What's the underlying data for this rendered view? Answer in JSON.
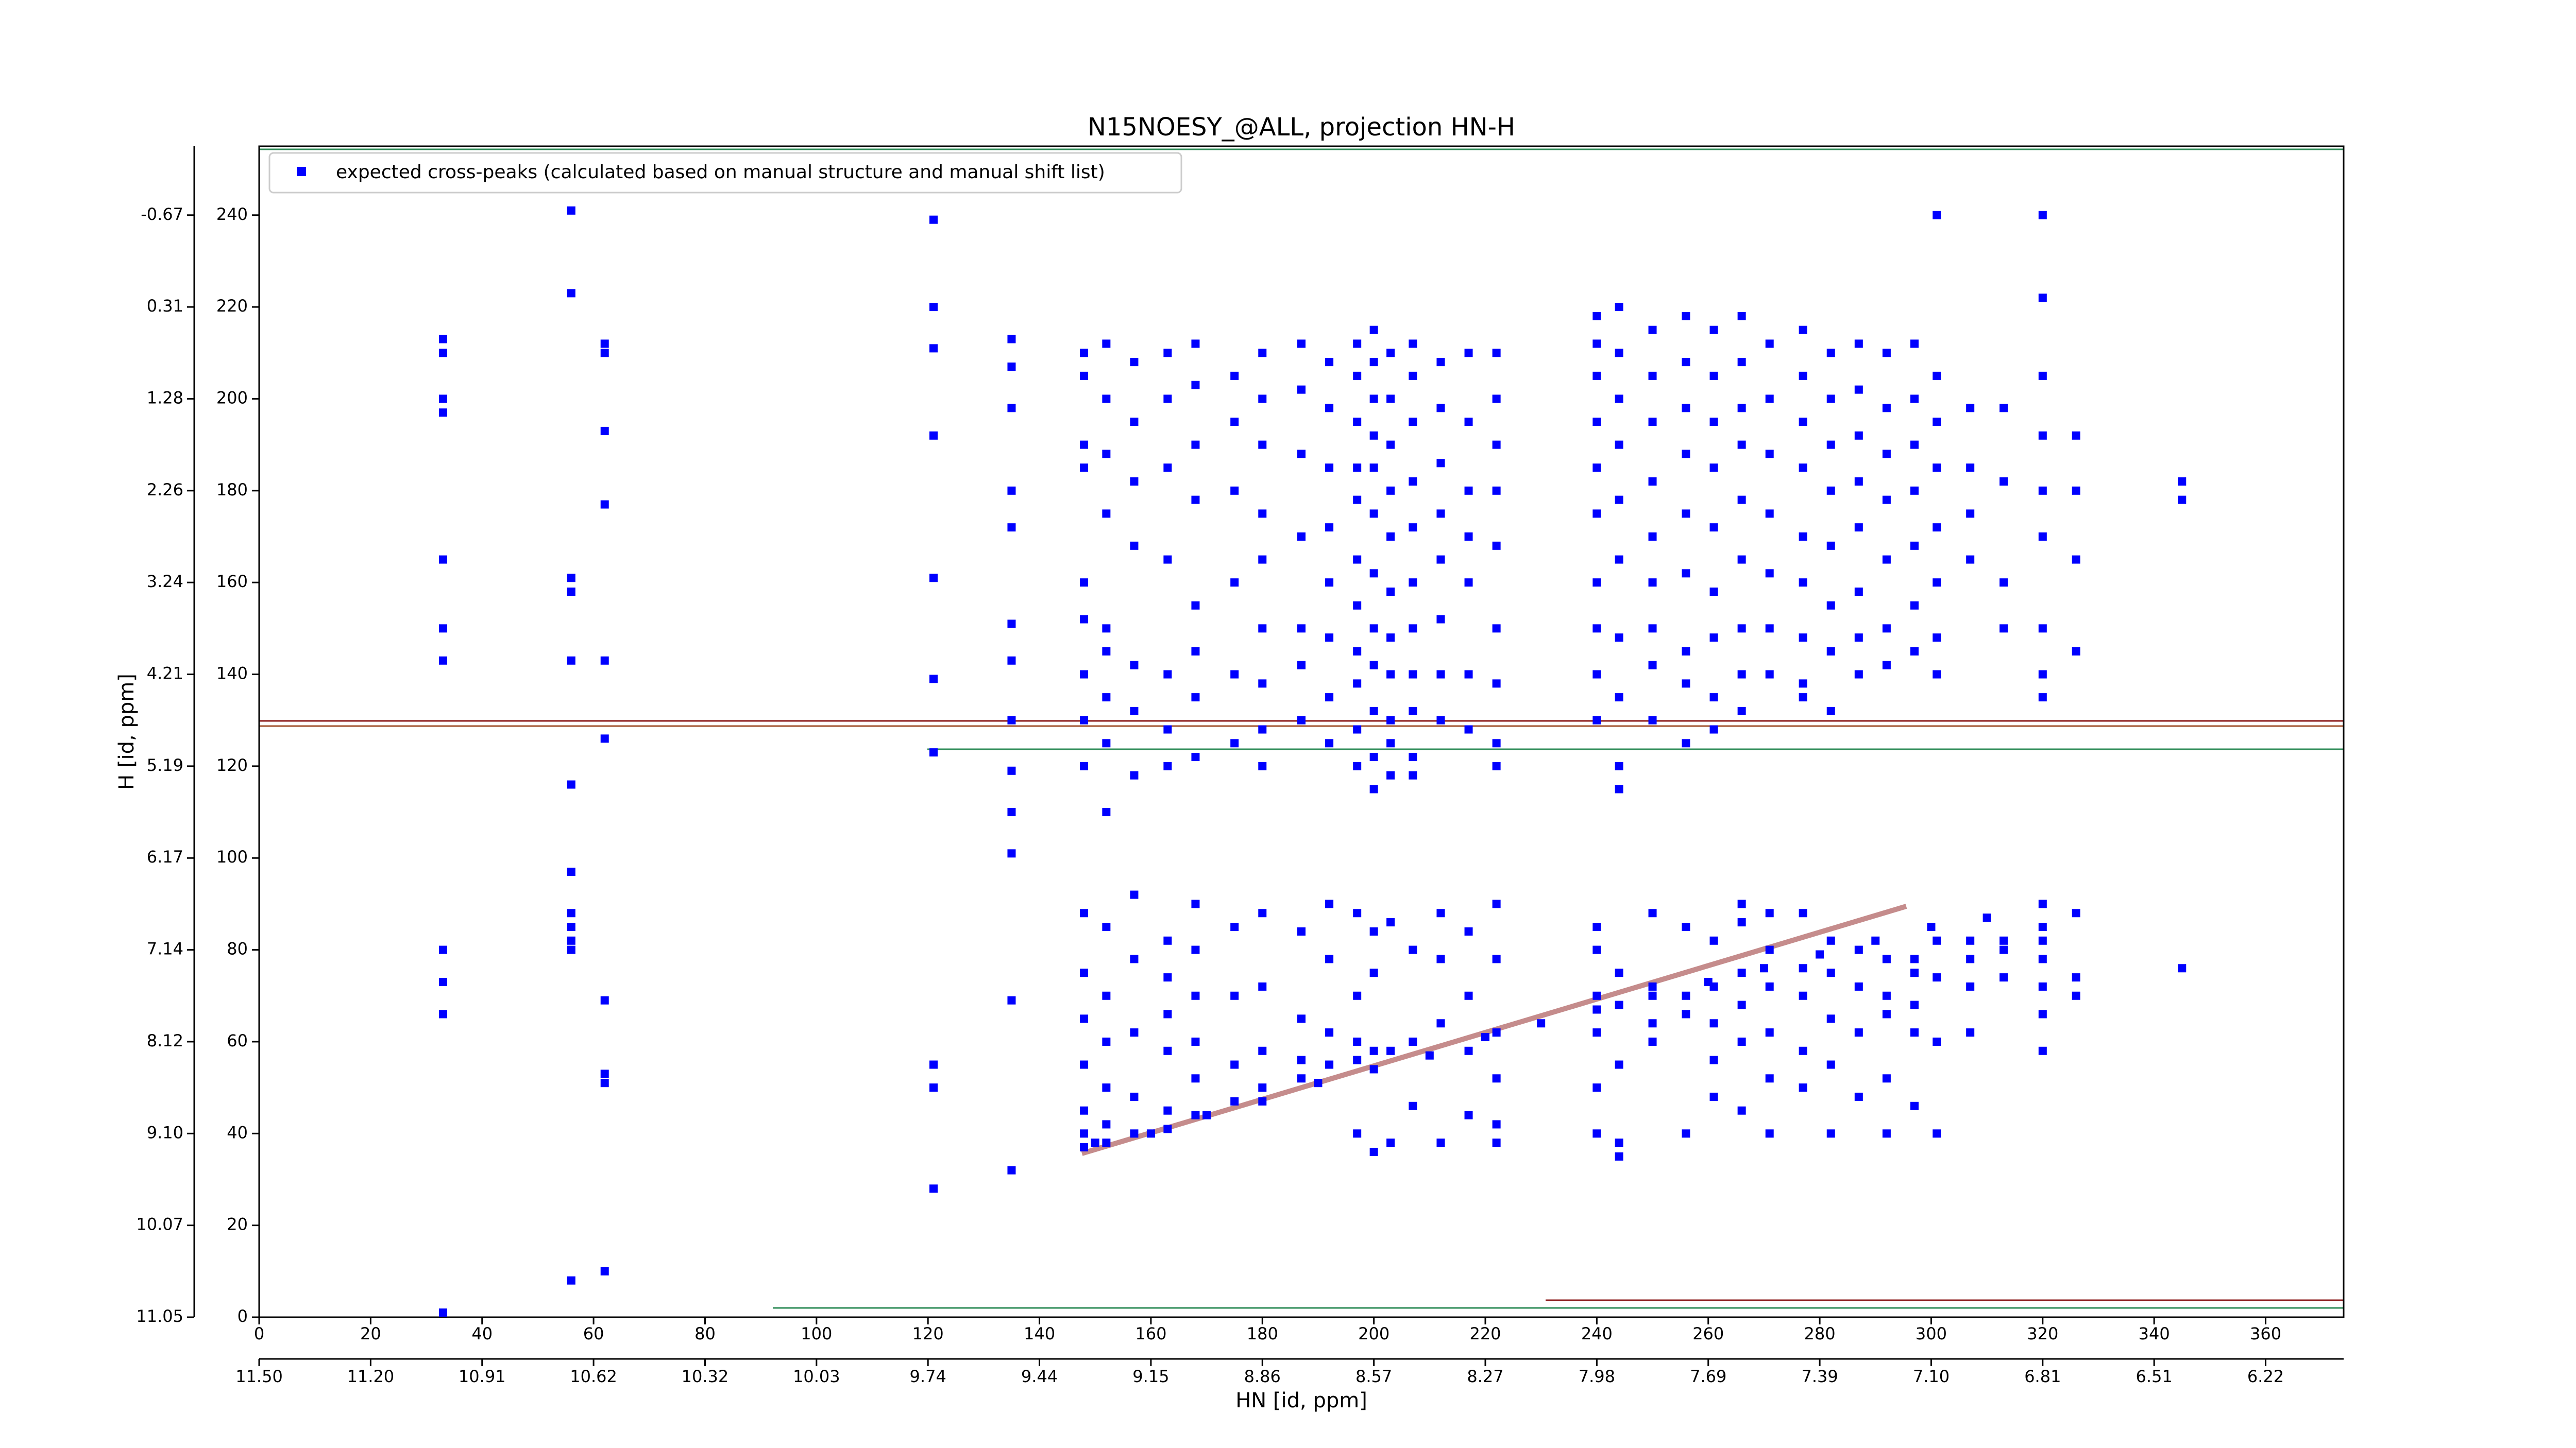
{
  "chart_data": {
    "type": "scatter",
    "title": "N15NOESY_@ALL, projection HN-H",
    "xlabel": "HN [id, ppm]",
    "ylabel": "H [id, ppm]",
    "xlim": [
      0,
      374
    ],
    "ylim": [
      0,
      255
    ],
    "xticks": [
      0,
      20,
      40,
      60,
      80,
      100,
      120,
      140,
      160,
      180,
      200,
      220,
      240,
      260,
      280,
      300,
      320,
      340,
      360
    ],
    "yticks": [
      0,
      20,
      40,
      60,
      80,
      100,
      120,
      140,
      160,
      180,
      200,
      220,
      240
    ],
    "x_ppm_ticks": [
      {
        "value": 0,
        "label": "11.50"
      },
      {
        "value": 20,
        "label": "11.20"
      },
      {
        "value": 40,
        "label": "10.91"
      },
      {
        "value": 60,
        "label": "10.62"
      },
      {
        "value": 80,
        "label": "10.32"
      },
      {
        "value": 100,
        "label": "10.03"
      },
      {
        "value": 120,
        "label": "9.74"
      },
      {
        "value": 140,
        "label": "9.44"
      },
      {
        "value": 160,
        "label": "9.15"
      },
      {
        "value": 180,
        "label": "8.86"
      },
      {
        "value": 200,
        "label": "8.57"
      },
      {
        "value": 220,
        "label": "8.27"
      },
      {
        "value": 240,
        "label": "7.98"
      },
      {
        "value": 260,
        "label": "7.69"
      },
      {
        "value": 280,
        "label": "7.39"
      },
      {
        "value": 300,
        "label": "7.10"
      },
      {
        "value": 320,
        "label": "6.81"
      },
      {
        "value": 340,
        "label": "6.51"
      },
      {
        "value": 360,
        "label": "6.22"
      }
    ],
    "y_ppm_ticks": [
      {
        "value": 0,
        "label": "11.05"
      },
      {
        "value": 20,
        "label": "10.07"
      },
      {
        "value": 40,
        "label": "9.10"
      },
      {
        "value": 60,
        "label": "8.12"
      },
      {
        "value": 80,
        "label": "7.14"
      },
      {
        "value": 100,
        "label": "6.17"
      },
      {
        "value": 120,
        "label": "5.19"
      },
      {
        "value": 140,
        "label": "4.21"
      },
      {
        "value": 160,
        "label": "3.24"
      },
      {
        "value": 180,
        "label": "2.26"
      },
      {
        "value": 200,
        "label": "1.28"
      },
      {
        "value": 220,
        "label": "0.31"
      },
      {
        "value": 240,
        "label": "-0.67"
      }
    ],
    "legend": "upper left",
    "series": [
      {
        "name": "expected cross-peaks (calculated based on manual structure and manual shift list)",
        "color": "#0000ff",
        "x": [
          33,
          33,
          33,
          33,
          33,
          33,
          33,
          33,
          33,
          33,
          33,
          56,
          56,
          56,
          56,
          56,
          56,
          56,
          56,
          56,
          56,
          56,
          56,
          62,
          62,
          62,
          62,
          62,
          62,
          62,
          62,
          62,
          62,
          121,
          121,
          121,
          121,
          121,
          121,
          121,
          121,
          121,
          121,
          135,
          135,
          135,
          135,
          135,
          135,
          135,
          135,
          135,
          135,
          135,
          135,
          135,
          148,
          148,
          148,
          148,
          148,
          148,
          148,
          148,
          148,
          148,
          148,
          148,
          148,
          148,
          148,
          148,
          152,
          152,
          152,
          152,
          152,
          152,
          152,
          152,
          152,
          152,
          152,
          152,
          152,
          152,
          152,
          157,
          157,
          157,
          157,
          157,
          157,
          157,
          157,
          157,
          157,
          157,
          157,
          163,
          163,
          163,
          163,
          163,
          163,
          163,
          163,
          163,
          163,
          163,
          163,
          163,
          168,
          168,
          168,
          168,
          168,
          168,
          168,
          168,
          168,
          168,
          168,
          168,
          168,
          168,
          175,
          175,
          175,
          175,
          175,
          175,
          175,
          175,
          175,
          175,
          180,
          180,
          180,
          180,
          180,
          180,
          180,
          180,
          180,
          180,
          180,
          180,
          180,
          187,
          187,
          187,
          187,
          187,
          187,
          187,
          187,
          187,
          187,
          187,
          192,
          192,
          192,
          192,
          192,
          192,
          192,
          192,
          192,
          192,
          192,
          192,
          197,
          197,
          197,
          197,
          197,
          197,
          197,
          197,
          197,
          197,
          197,
          197,
          197,
          197,
          197,
          197,
          200,
          200,
          200,
          200,
          200,
          200,
          200,
          200,
          200,
          200,
          200,
          200,
          200,
          200,
          200,
          200,
          203,
          203,
          203,
          203,
          203,
          203,
          203,
          203,
          203,
          203,
          203,
          203,
          203,
          203,
          207,
          207,
          207,
          207,
          207,
          207,
          207,
          207,
          207,
          207,
          207,
          207,
          207,
          207,
          212,
          212,
          212,
          212,
          212,
          212,
          212,
          212,
          212,
          212,
          212,
          212,
          217,
          217,
          217,
          217,
          217,
          217,
          217,
          217,
          217,
          217,
          217,
          222,
          222,
          222,
          222,
          222,
          222,
          222,
          222,
          222,
          222,
          222,
          222,
          222,
          222,
          222,
          240,
          240,
          240,
          240,
          240,
          240,
          240,
          240,
          240,
          240,
          240,
          240,
          240,
          240,
          240,
          240,
          244,
          244,
          244,
          244,
          244,
          244,
          244,
          244,
          244,
          244,
          244,
          244,
          244,
          244,
          244,
          250,
          250,
          250,
          250,
          250,
          250,
          250,
          250,
          250,
          250,
          250,
          250,
          250,
          256,
          256,
          256,
          256,
          256,
          256,
          256,
          256,
          256,
          256,
          256,
          256,
          256,
          261,
          261,
          261,
          261,
          261,
          261,
          261,
          261,
          261,
          261,
          261,
          261,
          261,
          261,
          266,
          266,
          266,
          266,
          266,
          266,
          266,
          266,
          266,
          266,
          266,
          266,
          266,
          266,
          266,
          271,
          271,
          271,
          271,
          271,
          271,
          271,
          271,
          271,
          271,
          271,
          271,
          271,
          277,
          277,
          277,
          277,
          277,
          277,
          277,
          277,
          277,
          277,
          277,
          277,
          277,
          277,
          282,
          282,
          282,
          282,
          282,
          282,
          282,
          282,
          282,
          282,
          282,
          282,
          282,
          287,
          287,
          287,
          287,
          287,
          287,
          287,
          287,
          287,
          287,
          287,
          287,
          292,
          292,
          292,
          292,
          292,
          292,
          292,
          292,
          292,
          292,
          292,
          292,
          297,
          297,
          297,
          297,
          297,
          297,
          297,
          297,
          297,
          297,
          297,
          297,
          301,
          301,
          301,
          301,
          301,
          301,
          301,
          301,
          301,
          301,
          301,
          301,
          307,
          307,
          307,
          307,
          307,
          307,
          307,
          307,
          313,
          313,
          313,
          313,
          313,
          313,
          313,
          320,
          320,
          320,
          320,
          320,
          320,
          320,
          320,
          320,
          320,
          320,
          320,
          320,
          320,
          320,
          326,
          326,
          326,
          326,
          326,
          326,
          326,
          345,
          345,
          345,
          150,
          160,
          170,
          180,
          190,
          200,
          210,
          220,
          230,
          240,
          250,
          260,
          270,
          280,
          290,
          300,
          310,
          320
        ],
        "values": [
          213,
          210,
          200,
          197,
          165,
          150,
          143,
          80,
          73,
          66,
          1,
          241,
          223,
          161,
          158,
          143,
          116,
          97,
          88,
          85,
          82,
          80,
          8,
          212,
          210,
          193,
          177,
          143,
          126,
          69,
          53,
          51,
          10,
          239,
          220,
          211,
          192,
          161,
          139,
          123,
          55,
          50,
          28,
          213,
          207,
          198,
          180,
          172,
          151,
          143,
          130,
          119,
          110,
          101,
          69,
          32,
          210,
          205,
          190,
          185,
          160,
          152,
          140,
          130,
          120,
          88,
          75,
          65,
          55,
          45,
          40,
          37,
          212,
          200,
          188,
          175,
          150,
          145,
          135,
          125,
          110,
          85,
          70,
          60,
          50,
          42,
          38,
          208,
          195,
          182,
          168,
          142,
          132,
          118,
          92,
          78,
          62,
          48,
          40,
          210,
          200,
          185,
          165,
          140,
          128,
          120,
          82,
          74,
          66,
          58,
          45,
          41,
          212,
          203,
          190,
          178,
          155,
          145,
          135,
          122,
          90,
          80,
          70,
          60,
          52,
          44,
          205,
          195,
          180,
          160,
          140,
          125,
          85,
          70,
          55,
          47,
          210,
          200,
          190,
          175,
          165,
          150,
          138,
          128,
          120,
          88,
          72,
          58,
          50,
          212,
          202,
          188,
          170,
          150,
          142,
          130,
          84,
          65,
          56,
          52,
          208,
          198,
          185,
          172,
          160,
          148,
          135,
          125,
          90,
          78,
          62,
          55,
          212,
          205,
          195,
          185,
          178,
          165,
          155,
          145,
          138,
          128,
          120,
          88,
          70,
          60,
          56,
          40,
          215,
          208,
          200,
          192,
          185,
          175,
          162,
          150,
          142,
          132,
          122,
          115,
          84,
          75,
          58,
          36,
          210,
          200,
          190,
          180,
          170,
          158,
          148,
          140,
          130,
          125,
          118,
          86,
          58,
          38,
          212,
          205,
          195,
          182,
          172,
          160,
          150,
          140,
          132,
          122,
          118,
          80,
          60,
          46,
          208,
          198,
          186,
          175,
          165,
          152,
          140,
          130,
          88,
          78,
          64,
          38,
          210,
          195,
          180,
          170,
          160,
          140,
          128,
          84,
          70,
          58,
          44,
          210,
          200,
          190,
          180,
          168,
          150,
          138,
          125,
          120,
          90,
          78,
          62,
          52,
          42,
          38,
          218,
          212,
          205,
          195,
          185,
          175,
          160,
          150,
          140,
          130,
          85,
          80,
          70,
          62,
          50,
          40,
          220,
          210,
          200,
          190,
          178,
          165,
          148,
          135,
          120,
          115,
          75,
          68,
          55,
          38,
          35,
          215,
          205,
          195,
          182,
          170,
          160,
          150,
          142,
          130,
          88,
          72,
          64,
          60,
          218,
          208,
          198,
          188,
          175,
          162,
          145,
          138,
          125,
          85,
          70,
          66,
          40,
          215,
          205,
          195,
          185,
          172,
          158,
          148,
          135,
          128,
          82,
          72,
          64,
          56,
          48,
          218,
          208,
          198,
          190,
          178,
          165,
          150,
          140,
          132,
          90,
          86,
          75,
          68,
          60,
          45,
          212,
          200,
          188,
          175,
          162,
          150,
          140,
          88,
          80,
          72,
          62,
          52,
          40,
          215,
          205,
          195,
          185,
          170,
          160,
          148,
          138,
          135,
          88,
          76,
          70,
          58,
          50,
          210,
          200,
          190,
          180,
          168,
          155,
          145,
          132,
          82,
          75,
          65,
          55,
          40,
          212,
          202,
          192,
          182,
          172,
          158,
          148,
          140,
          80,
          72,
          62,
          48,
          210,
          198,
          188,
          178,
          165,
          150,
          142,
          78,
          70,
          66,
          52,
          40,
          212,
          200,
          190,
          180,
          168,
          155,
          145,
          78,
          75,
          68,
          62,
          46,
          240,
          205,
          195,
          185,
          172,
          160,
          148,
          140,
          82,
          74,
          60,
          40,
          198,
          185,
          175,
          165,
          82,
          78,
          72,
          62,
          198,
          182,
          160,
          150,
          82,
          80,
          74,
          240,
          222,
          205,
          192,
          180,
          170,
          150,
          140,
          135,
          85,
          82,
          78,
          72,
          66,
          58,
          192,
          180,
          165,
          145,
          88,
          74,
          70,
          182,
          178,
          76,
          38,
          40,
          44,
          47,
          51,
          54,
          57,
          61,
          64,
          67,
          70,
          73,
          76,
          79,
          82,
          85,
          87,
          90
        ]
      }
    ]
  }
}
